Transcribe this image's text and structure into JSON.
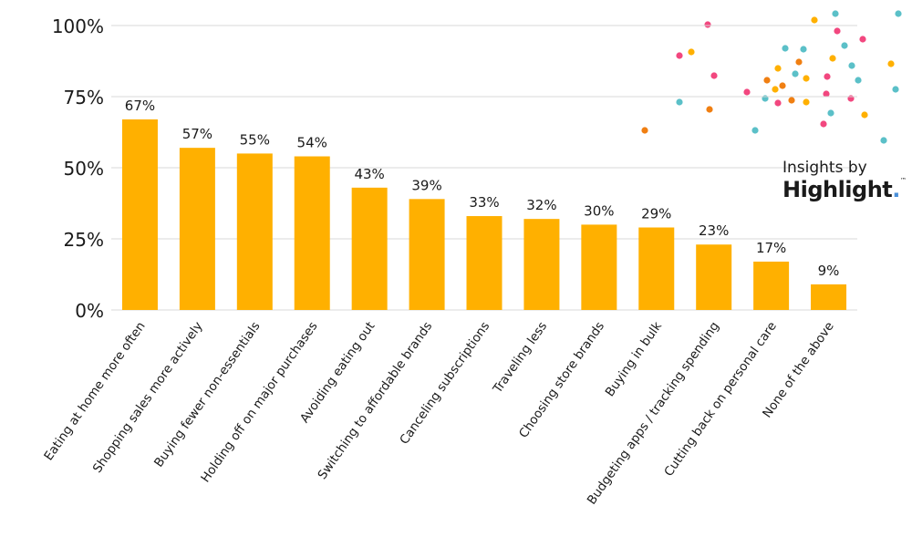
{
  "brand": {
    "line1": "Insights by",
    "line2": "Highlight",
    "trademark": "™",
    "dot": "."
  },
  "colors": {
    "bar": "#FFB000",
    "grid": "#d9d9d9",
    "text": "#1a1a1a",
    "dots": [
      "#F2477F",
      "#FFB000",
      "#5BC0C8",
      "#F07F12"
    ]
  },
  "chart_data": {
    "type": "bar",
    "title": "",
    "xlabel": "",
    "ylabel": "",
    "ylim": [
      0,
      100
    ],
    "yticks": [
      0,
      25,
      50,
      75,
      100
    ],
    "ytick_labels": [
      "0%",
      "25%",
      "50%",
      "75%",
      "100%"
    ],
    "grid": true,
    "categories": [
      "Eating at home more often",
      "Shopping sales more actively",
      "Buying fewer non-essentials",
      "Holding off on major purchases",
      "Avoiding eating out",
      "Switching to affordable brands",
      "Canceling subscriptions",
      "Traveling less",
      "Choosing store brands",
      "Buying in bulk",
      "Budgeting apps / tracking spending",
      "Cutting back on personal care",
      "None of the above"
    ],
    "values": [
      67,
      57,
      55,
      54,
      43,
      39,
      33,
      32,
      30,
      29,
      23,
      17,
      9
    ],
    "data_labels": [
      "67%",
      "57%",
      "55%",
      "54%",
      "43%",
      "39%",
      "33%",
      "32%",
      "30%",
      "29%",
      "23%",
      "17%",
      "9%"
    ]
  }
}
